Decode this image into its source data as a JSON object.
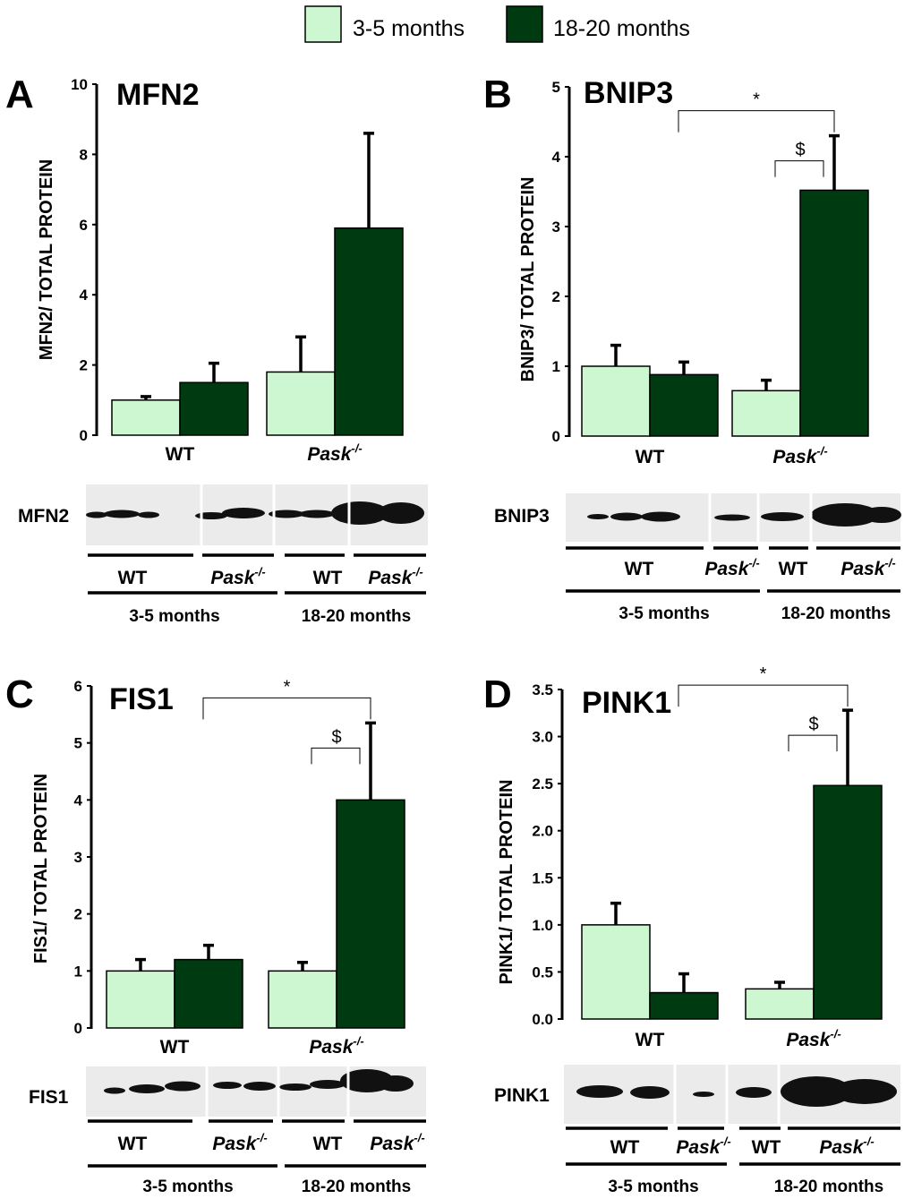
{
  "legend": {
    "light": "3-5 months",
    "dark": "18-20 months"
  },
  "colors": {
    "light": "#ccf7d0",
    "dark": "#003a10"
  },
  "chart_data": [
    {
      "type": "bar",
      "letter": "A",
      "title": "MFN2",
      "ylabel": "MFN2/ TOTAL PROTEIN",
      "ylim": [
        0,
        10
      ],
      "yticks": [
        "0",
        "2",
        "4",
        "6",
        "8",
        "10"
      ],
      "groups": [
        "WT",
        "Pask",
        "-/-"
      ],
      "series": [
        {
          "name": "3-5 months",
          "values": [
            1.0,
            1.8
          ],
          "errors": [
            0.1,
            1.0
          ]
        },
        {
          "name": "18-20 months",
          "values": [
            1.5,
            5.9
          ],
          "errors": [
            0.55,
            2.7
          ]
        }
      ],
      "brackets": [],
      "blot": {
        "label": "MFN2",
        "lanes": [
          "WT",
          "Pask",
          "WT",
          "Pask"
        ],
        "sup": "-/-",
        "ages": [
          "3-5 months",
          "18-20 months"
        ]
      }
    },
    {
      "type": "bar",
      "letter": "B",
      "title": "BNIP3",
      "ylabel": "BNIP3/ TOTAL PROTEIN",
      "ylim": [
        0,
        5
      ],
      "yticks": [
        "0",
        "1",
        "2",
        "3",
        "4",
        "5"
      ],
      "groups": [
        "WT",
        "Pask",
        "-/-"
      ],
      "series": [
        {
          "name": "3-5 months",
          "values": [
            1.0,
            0.65
          ],
          "errors": [
            0.3,
            0.15
          ]
        },
        {
          "name": "18-20 months",
          "values": [
            0.88,
            3.52
          ],
          "errors": [
            0.18,
            0.78
          ]
        }
      ],
      "brackets": [
        "*",
        "$"
      ],
      "blot": {
        "label": "BNIP3",
        "lanes": [
          "WT",
          "Pask",
          "WT",
          "Pask"
        ],
        "sup": "-/-",
        "ages": [
          "3-5 months",
          "18-20 months"
        ]
      }
    },
    {
      "type": "bar",
      "letter": "C",
      "title": "FIS1",
      "ylabel": "FIS1/ TOTAL PROTEIN",
      "ylim": [
        0,
        6
      ],
      "yticks": [
        "0",
        "1",
        "2",
        "3",
        "4",
        "5",
        "6"
      ],
      "groups": [
        "WT",
        "Pask",
        "-/-"
      ],
      "series": [
        {
          "name": "3-5 months",
          "values": [
            1.0,
            1.0
          ],
          "errors": [
            0.2,
            0.15
          ]
        },
        {
          "name": "18-20 months",
          "values": [
            1.2,
            4.0
          ],
          "errors": [
            0.25,
            1.35
          ]
        }
      ],
      "brackets": [
        "*",
        "$"
      ],
      "blot": {
        "label": "FIS1",
        "lanes": [
          "WT",
          "Pask",
          "WT",
          "Pask"
        ],
        "sup": "-/-",
        "ages": [
          "3-5 months",
          "18-20 months"
        ]
      }
    },
    {
      "type": "bar",
      "letter": "D",
      "title": "PINK1",
      "ylabel": "PINK1/ TOTAL PROTEIN",
      "ylim": [
        0,
        3.5
      ],
      "yticks": [
        "0.0",
        "0.5",
        "1.0",
        "1.5",
        "2.0",
        "2.5",
        "3.0",
        "3.5"
      ],
      "groups": [
        "WT",
        "Pask",
        "-/-"
      ],
      "series": [
        {
          "name": "3-5 months",
          "values": [
            1.0,
            0.32
          ],
          "errors": [
            0.23,
            0.07
          ]
        },
        {
          "name": "18-20 months",
          "values": [
            0.28,
            2.48
          ],
          "errors": [
            0.2,
            0.8
          ]
        }
      ],
      "brackets": [
        "*",
        "$"
      ],
      "blot": {
        "label": "PINK1",
        "lanes": [
          "WT",
          "Pask",
          "WT",
          "Pask"
        ],
        "sup": "-/-",
        "ages": [
          "3-5 months",
          "18-20 months"
        ]
      }
    }
  ]
}
